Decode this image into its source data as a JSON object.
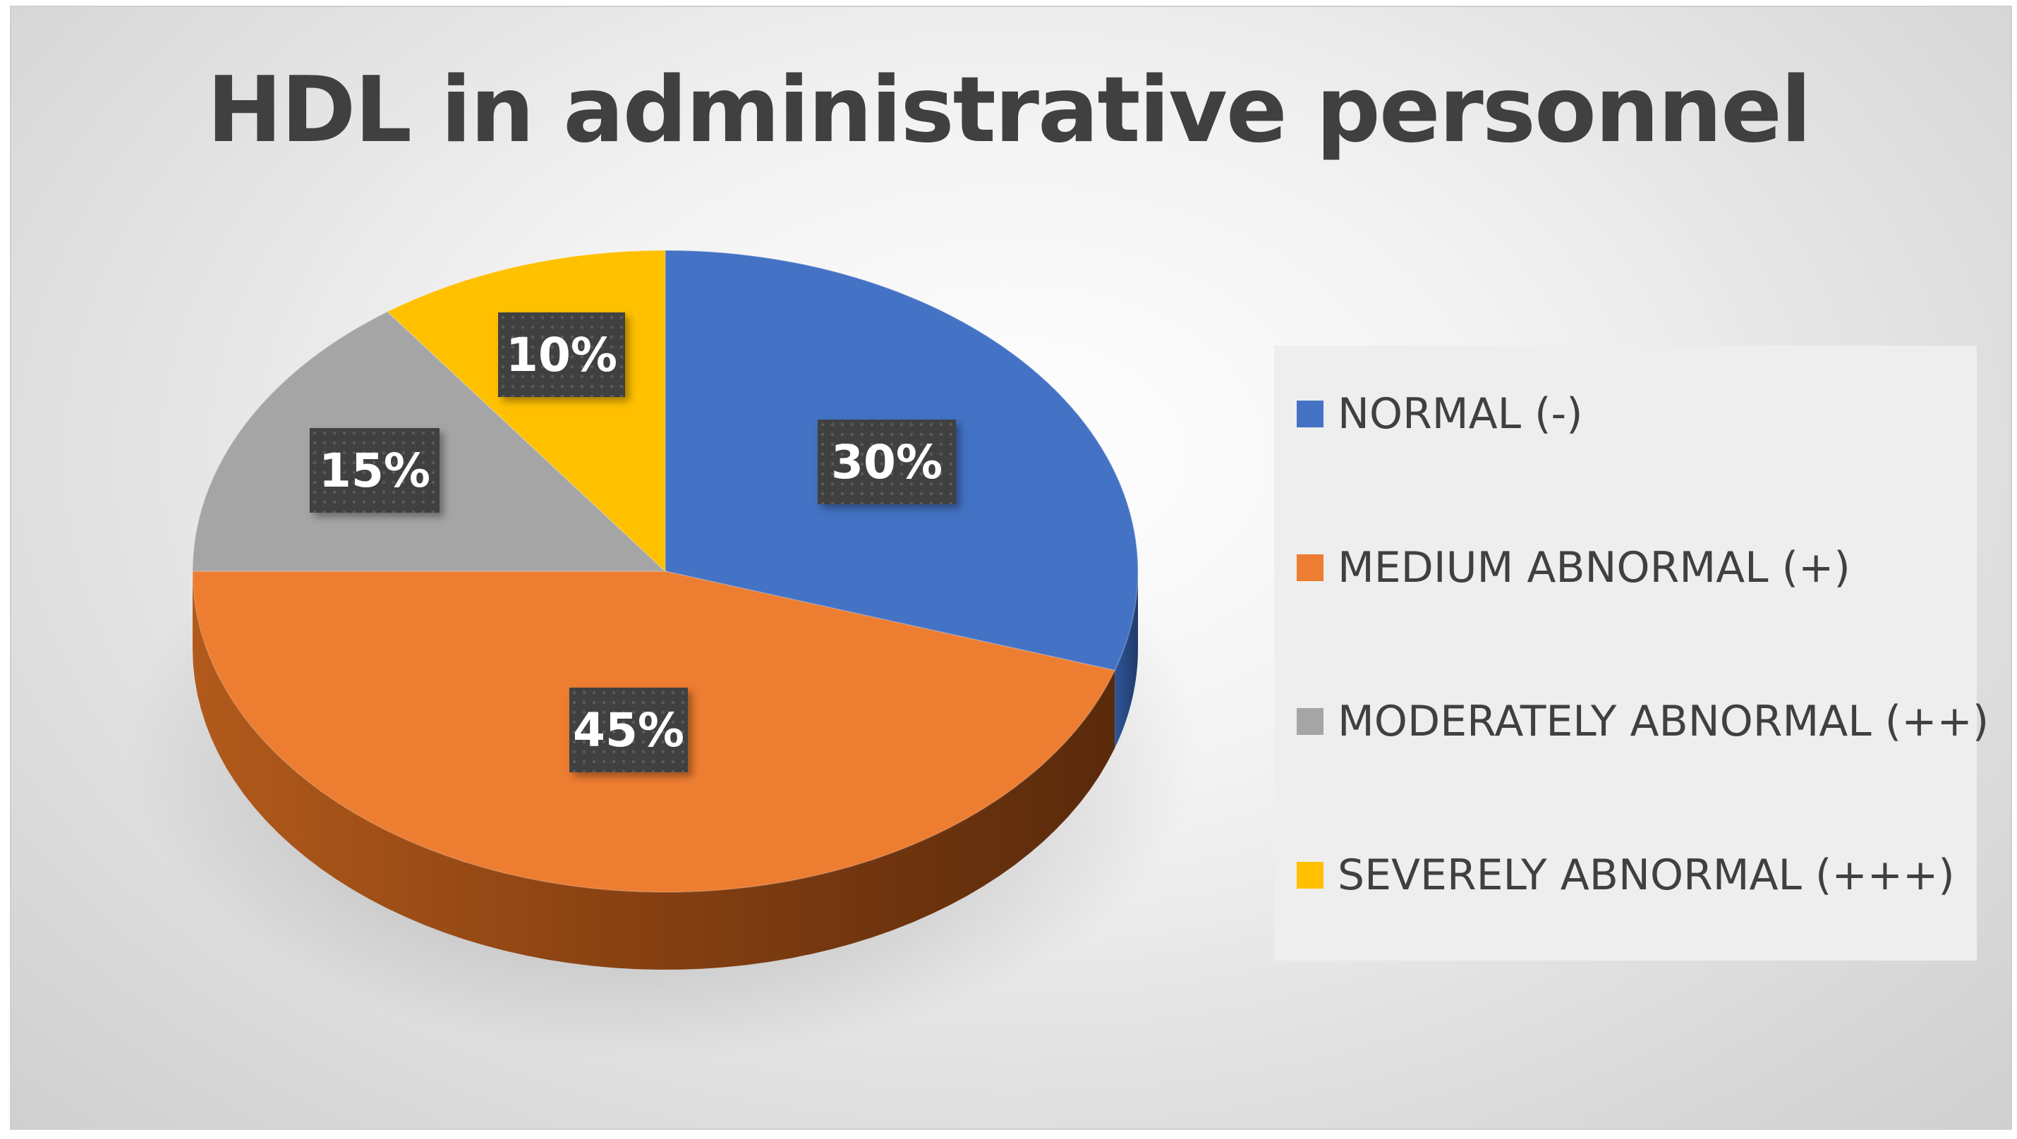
{
  "chart_data": {
    "type": "pie",
    "title": "HDL in administrative personnel",
    "categories": [
      "NORMAL (-)",
      "MEDIUM ABNORMAL (+)",
      "MODERATELY ABNORMAL (++)",
      "SEVERELY ABNORMAL (+++)"
    ],
    "values": [
      30,
      45,
      15,
      10
    ],
    "value_labels": [
      "30%",
      "45%",
      "15%",
      "10%"
    ],
    "colors": [
      "#4472C4",
      "#ED7D31",
      "#A5A5A5",
      "#FFC000"
    ],
    "style": "3d",
    "start_angle": "12 o'clock, clockwise",
    "legend_position": "right"
  }
}
